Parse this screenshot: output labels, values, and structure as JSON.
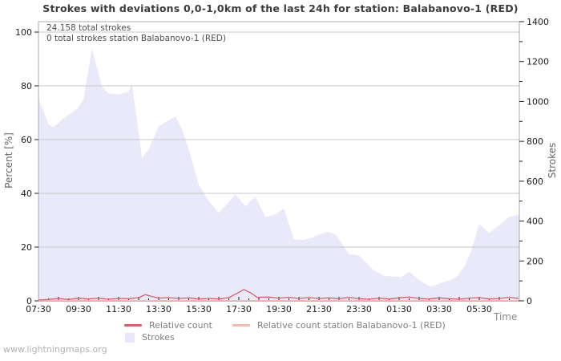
{
  "title": "Strokes with deviations 0,0-1,0km of the last 24h for station: Balabanovo-1 (RED)",
  "annotations": {
    "total_strokes": "24.158 total strokes",
    "station_total_strokes": "0 total strokes station Balabanovo-1 (RED)"
  },
  "watermark": "www.lightningmaps.org",
  "axes": {
    "left": {
      "label": "Percent  [%]",
      "ticks": [
        0,
        20,
        40,
        60,
        80,
        100
      ]
    },
    "right": {
      "label": "Strokes",
      "major_ticks": [
        0,
        200,
        400,
        600,
        800,
        1000,
        1200,
        1400
      ],
      "minor_ticks": [
        100,
        300,
        500,
        700,
        900,
        1100,
        1300
      ]
    },
    "x": {
      "label": "Time",
      "tick_labels": [
        "07:30",
        "09:30",
        "11:30",
        "13:30",
        "15:30",
        "17:30",
        "19:30",
        "21:30",
        "23:30",
        "01:30",
        "03:30",
        "05:30"
      ]
    }
  },
  "legend": [
    {
      "label": "Relative count",
      "type": "line",
      "color": "#d2626e"
    },
    {
      "label": "Relative count station Balabanovo-1 (RED)",
      "type": "line",
      "color": "#f3bcb2"
    },
    {
      "label": "Strokes",
      "type": "area",
      "color": "#e7e7f9"
    }
  ],
  "colors": {
    "area_fill": "#e9e9fa",
    "relative_count_line": "#d2626e",
    "station_line": "#f3bcb2",
    "gridline": "#c7c7cc",
    "plot_border": "#ababab",
    "axis_line": "#2e2e2e",
    "tick": "#222222",
    "tick_label": "#1a1a1a"
  },
  "chart_data": {
    "type": "area",
    "title": "Strokes with deviations 0,0-1,0km of the last 24h for station: Balabanovo-1 (RED)",
    "x_axis": "Time, 24h window from 07:30 to 07:30 next day",
    "ylim_left_percent": [
      0,
      100
    ],
    "ylim_right_strokes": [
      0,
      1400
    ],
    "grid": "horizontal at 20/40/60/80/100 %",
    "legend_position": "below chart",
    "series": [
      {
        "name": "Strokes",
        "type": "area",
        "axis": "right",
        "unit": "strokes",
        "points": [
          [
            "07:30",
            1015
          ],
          [
            "08:00",
            885
          ],
          [
            "08:15",
            870
          ],
          [
            "08:45",
            915
          ],
          [
            "09:15",
            950
          ],
          [
            "09:30",
            970
          ],
          [
            "09:45",
            1010
          ],
          [
            "10:10",
            1265
          ],
          [
            "10:40",
            1075
          ],
          [
            "11:00",
            1040
          ],
          [
            "11:30",
            1035
          ],
          [
            "12:00",
            1050
          ],
          [
            "12:10",
            1090
          ],
          [
            "12:40",
            715
          ],
          [
            "13:00",
            760
          ],
          [
            "13:30",
            875
          ],
          [
            "14:00",
            905
          ],
          [
            "14:20",
            925
          ],
          [
            "14:40",
            860
          ],
          [
            "15:00",
            760
          ],
          [
            "15:30",
            583
          ],
          [
            "16:00",
            500
          ],
          [
            "16:30",
            442
          ],
          [
            "17:00",
            495
          ],
          [
            "17:20",
            535
          ],
          [
            "17:50",
            474
          ],
          [
            "18:20",
            522
          ],
          [
            "18:50",
            420
          ],
          [
            "19:15",
            430
          ],
          [
            "19:45",
            462
          ],
          [
            "20:15",
            308
          ],
          [
            "20:45",
            305
          ],
          [
            "21:10",
            318
          ],
          [
            "21:40",
            338
          ],
          [
            "21:55",
            346
          ],
          [
            "22:20",
            332
          ],
          [
            "23:00",
            235
          ],
          [
            "23:30",
            228
          ],
          [
            "00:15",
            152
          ],
          [
            "00:45",
            125
          ],
          [
            "01:35",
            119
          ],
          [
            "02:00",
            145
          ],
          [
            "02:30",
            105
          ],
          [
            "03:05",
            70
          ],
          [
            "03:40",
            93
          ],
          [
            "04:05",
            105
          ],
          [
            "04:25",
            125
          ],
          [
            "04:45",
            172
          ],
          [
            "05:05",
            246
          ],
          [
            "05:30",
            386
          ],
          [
            "05:45",
            362
          ],
          [
            "06:00",
            340
          ],
          [
            "06:35",
            386
          ],
          [
            "07:00",
            421
          ],
          [
            "07:28",
            433
          ]
        ]
      },
      {
        "name": "Relative count",
        "type": "line",
        "axis": "left",
        "unit": "%",
        "points": [
          [
            "07:30",
            0.3
          ],
          [
            "08:00",
            0.5
          ],
          [
            "08:30",
            0.9
          ],
          [
            "09:00",
            0.5
          ],
          [
            "09:30",
            1.0
          ],
          [
            "10:00",
            0.7
          ],
          [
            "10:30",
            1.0
          ],
          [
            "11:00",
            0.6
          ],
          [
            "11:30",
            0.9
          ],
          [
            "12:00",
            0.8
          ],
          [
            "12:30",
            1.2
          ],
          [
            "12:50",
            2.3
          ],
          [
            "13:10",
            1.6
          ],
          [
            "13:30",
            1.0
          ],
          [
            "14:00",
            1.2
          ],
          [
            "14:30",
            0.9
          ],
          [
            "15:00",
            1.1
          ],
          [
            "15:30",
            0.7
          ],
          [
            "16:00",
            0.9
          ],
          [
            "16:30",
            0.7
          ],
          [
            "17:00",
            1.2
          ],
          [
            "17:25",
            2.8
          ],
          [
            "17:45",
            4.2
          ],
          [
            "18:05",
            3.0
          ],
          [
            "18:25",
            1.3
          ],
          [
            "19:00",
            1.4
          ],
          [
            "19:30",
            1.0
          ],
          [
            "20:00",
            1.3
          ],
          [
            "20:30",
            0.9
          ],
          [
            "21:00",
            1.2
          ],
          [
            "21:30",
            0.9
          ],
          [
            "22:00",
            1.1
          ],
          [
            "22:30",
            0.8
          ],
          [
            "23:00",
            1.3
          ],
          [
            "23:30",
            0.8
          ],
          [
            "00:00",
            0.6
          ],
          [
            "00:30",
            1.0
          ],
          [
            "01:00",
            0.7
          ],
          [
            "01:30",
            1.1
          ],
          [
            "02:00",
            1.4
          ],
          [
            "02:30",
            0.9
          ],
          [
            "03:00",
            0.7
          ],
          [
            "03:30",
            1.1
          ],
          [
            "04:00",
            0.8
          ],
          [
            "04:30",
            0.6
          ],
          [
            "05:00",
            1.0
          ],
          [
            "05:30",
            1.2
          ],
          [
            "06:00",
            0.7
          ],
          [
            "06:30",
            0.9
          ],
          [
            "07:00",
            1.3
          ],
          [
            "07:28",
            0.9
          ]
        ]
      },
      {
        "name": "Relative count station Balabanovo-1 (RED)",
        "type": "line",
        "axis": "left",
        "unit": "%",
        "points": [
          [
            "07:30",
            0.1
          ],
          [
            "19:30",
            0.1
          ],
          [
            "07:28",
            0.1
          ]
        ]
      }
    ]
  }
}
